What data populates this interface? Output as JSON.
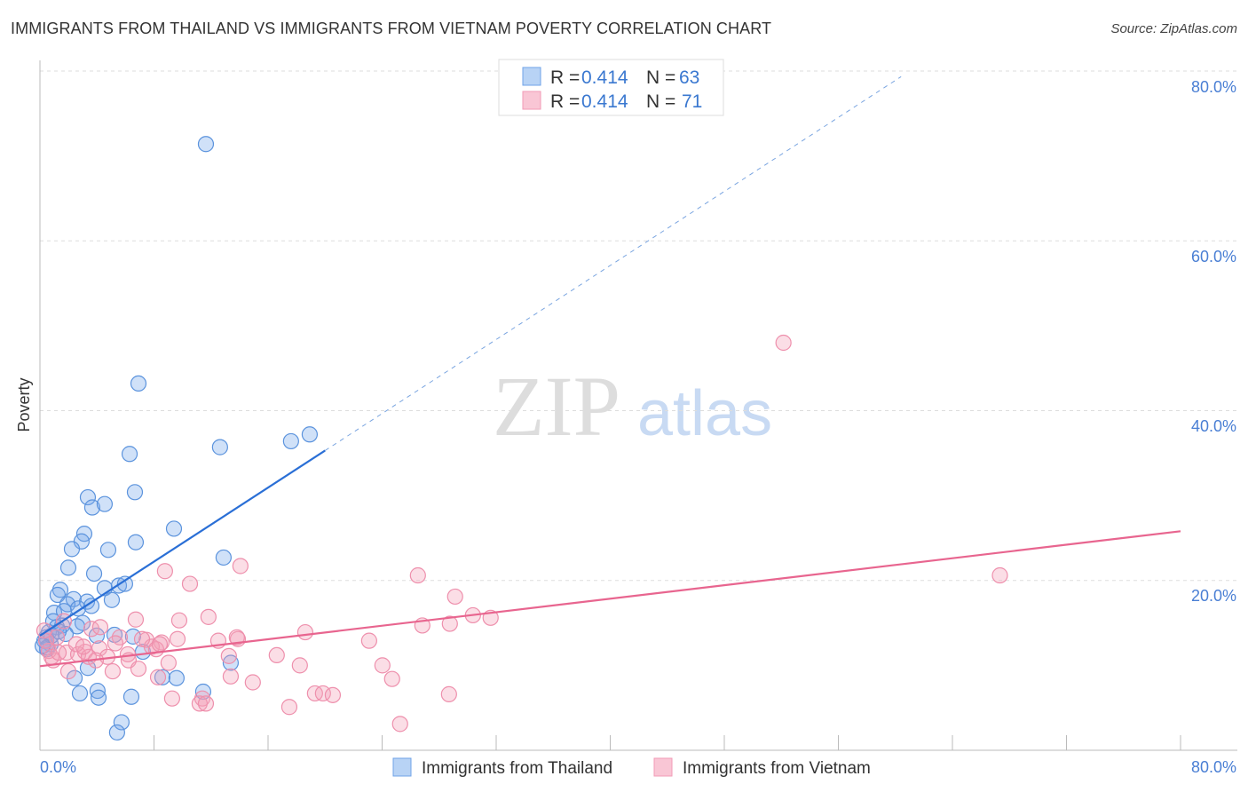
{
  "header": {
    "title": "IMMIGRANTS FROM THAILAND VS IMMIGRANTS FROM VIETNAM POVERTY CORRELATION CHART",
    "source": "Source: ZipAtlas.com"
  },
  "watermark": "ZIPatlas",
  "legend": {
    "rows": [
      {
        "r_label": "R = ",
        "r": "0.414",
        "n_label": "N = ",
        "n": "63"
      },
      {
        "r_label": "R = ",
        "r": "0.414",
        "n_label": "N = ",
        "n": "71"
      }
    ]
  },
  "chart_data": {
    "type": "scatter",
    "title": "IMMIGRANTS FROM THAILAND VS IMMIGRANTS FROM VIETNAM POVERTY CORRELATION CHART",
    "xlabel": "",
    "ylabel": "Poverty",
    "xlim": [
      0,
      80
    ],
    "ylim": [
      0,
      80
    ],
    "x_tick_labels": [
      "0.0%",
      "80.0%"
    ],
    "y_tick_labels": [
      "20.0%",
      "40.0%",
      "60.0%",
      "80.0%"
    ],
    "y_ticks": [
      20,
      40,
      60,
      80
    ],
    "grid": true,
    "legend_position": "top-center",
    "colors": {
      "thailand": "#6fa3e8",
      "vietnam": "#f29bb6",
      "thailand_line": "#2a6fd6",
      "vietnam_line": "#e8658f"
    },
    "series": [
      {
        "name": "Immigrants from Thailand",
        "R": 0.414,
        "N": 63,
        "trend": {
          "x0": 0,
          "y0": 13.5,
          "x_solid_end": 20.0,
          "x_dash_end": 60.4,
          "slope": 1.09
        },
        "points": [
          [
            11.64,
            71.4
          ],
          [
            6.91,
            43.2
          ],
          [
            6.29,
            34.9
          ],
          [
            12.63,
            35.7
          ],
          [
            17.61,
            36.4
          ],
          [
            18.92,
            37.2
          ],
          [
            3.36,
            29.8
          ],
          [
            6.66,
            30.4
          ],
          [
            3.67,
            28.6
          ],
          [
            4.54,
            29.0
          ],
          [
            9.4,
            26.1
          ],
          [
            3.11,
            25.5
          ],
          [
            2.92,
            24.6
          ],
          [
            2.24,
            23.7
          ],
          [
            4.79,
            23.6
          ],
          [
            6.72,
            24.5
          ],
          [
            1.99,
            21.5
          ],
          [
            3.8,
            20.8
          ],
          [
            12.88,
            22.7
          ],
          [
            4.54,
            19.1
          ],
          [
            5.54,
            19.4
          ],
          [
            5.97,
            19.6
          ],
          [
            1.43,
            18.9
          ],
          [
            1.24,
            18.3
          ],
          [
            2.36,
            17.8
          ],
          [
            1.93,
            17.2
          ],
          [
            3.3,
            17.5
          ],
          [
            5.04,
            17.7
          ],
          [
            2.68,
            16.7
          ],
          [
            3.61,
            17.0
          ],
          [
            1.0,
            16.2
          ],
          [
            1.68,
            16.4
          ],
          [
            0.93,
            15.2
          ],
          [
            1.56,
            14.7
          ],
          [
            2.99,
            15.0
          ],
          [
            2.61,
            14.6
          ],
          [
            1.18,
            14.5
          ],
          [
            1.8,
            13.7
          ],
          [
            0.62,
            13.9
          ],
          [
            0.44,
            13.3
          ],
          [
            0.31,
            12.9
          ],
          [
            0.75,
            12.5
          ],
          [
            0.5,
            11.9
          ],
          [
            3.98,
            13.5
          ],
          [
            5.23,
            13.6
          ],
          [
            6.53,
            13.4
          ],
          [
            7.22,
            11.6
          ],
          [
            3.36,
            9.7
          ],
          [
            2.43,
            8.5
          ],
          [
            13.38,
            10.3
          ],
          [
            8.59,
            8.6
          ],
          [
            9.58,
            8.5
          ],
          [
            2.8,
            6.7
          ],
          [
            4.04,
            7.0
          ],
          [
            4.11,
            6.2
          ],
          [
            6.41,
            6.3
          ],
          [
            11.45,
            6.9
          ],
          [
            5.72,
            3.3
          ],
          [
            5.41,
            2.1
          ],
          [
            0.5,
            12.1
          ],
          [
            0.81,
            13.5
          ],
          [
            0.19,
            12.3
          ],
          [
            1.31,
            14.0
          ]
        ]
      },
      {
        "name": "Immigrants from Vietnam",
        "R": 0.414,
        "N": 71,
        "trend": {
          "x0": 0,
          "y0": 9.9,
          "x1": 80,
          "y1": 25.8
        },
        "points": [
          [
            52.15,
            48.0
          ],
          [
            67.33,
            20.6
          ],
          [
            26.51,
            20.6
          ],
          [
            29.12,
            18.1
          ],
          [
            14.06,
            21.7
          ],
          [
            8.77,
            21.1
          ],
          [
            10.52,
            19.6
          ],
          [
            30.37,
            15.9
          ],
          [
            31.61,
            15.6
          ],
          [
            26.82,
            14.7
          ],
          [
            28.75,
            14.9
          ],
          [
            6.72,
            15.4
          ],
          [
            9.77,
            15.3
          ],
          [
            11.82,
            15.7
          ],
          [
            18.61,
            13.9
          ],
          [
            13.88,
            13.1
          ],
          [
            12.51,
            12.9
          ],
          [
            9.65,
            13.1
          ],
          [
            8.53,
            12.7
          ],
          [
            7.47,
            13.0
          ],
          [
            5.6,
            13.3
          ],
          [
            3.61,
            14.3
          ],
          [
            4.23,
            14.5
          ],
          [
            1.68,
            15.2
          ],
          [
            1.18,
            13.3
          ],
          [
            1.87,
            11.5
          ],
          [
            2.68,
            11.3
          ],
          [
            3.17,
            11.6
          ],
          [
            4.17,
            12.0
          ],
          [
            4.73,
            11.0
          ],
          [
            6.16,
            11.3
          ],
          [
            7.84,
            12.2
          ],
          [
            8.15,
            11.9
          ],
          [
            6.22,
            10.6
          ],
          [
            9.02,
            10.3
          ],
          [
            13.25,
            11.1
          ],
          [
            16.61,
            11.2
          ],
          [
            18.23,
            10.0
          ],
          [
            23.09,
            12.9
          ],
          [
            24.02,
            10.0
          ],
          [
            24.7,
            8.4
          ],
          [
            14.93,
            8.0
          ],
          [
            13.38,
            8.7
          ],
          [
            8.28,
            8.6
          ],
          [
            6.91,
            9.6
          ],
          [
            5.1,
            9.3
          ],
          [
            1.99,
            9.3
          ],
          [
            0.93,
            10.6
          ],
          [
            0.62,
            11.7
          ],
          [
            0.44,
            12.9
          ],
          [
            19.29,
            6.7
          ],
          [
            19.85,
            6.7
          ],
          [
            20.54,
            6.5
          ],
          [
            17.49,
            5.1
          ],
          [
            11.39,
            6.1
          ],
          [
            11.2,
            5.5
          ],
          [
            9.27,
            6.1
          ],
          [
            28.69,
            6.6
          ],
          [
            25.26,
            3.1
          ],
          [
            0.31,
            14.1
          ],
          [
            0.81,
            11.0
          ],
          [
            2.55,
            12.5
          ],
          [
            3.42,
            11.0
          ],
          [
            5.29,
            12.6
          ],
          [
            7.16,
            13.1
          ],
          [
            8.4,
            12.5
          ],
          [
            13.81,
            13.3
          ],
          [
            11.64,
            5.5
          ],
          [
            1.31,
            11.5
          ],
          [
            3.05,
            12.2
          ],
          [
            3.92,
            10.6
          ]
        ]
      }
    ]
  }
}
